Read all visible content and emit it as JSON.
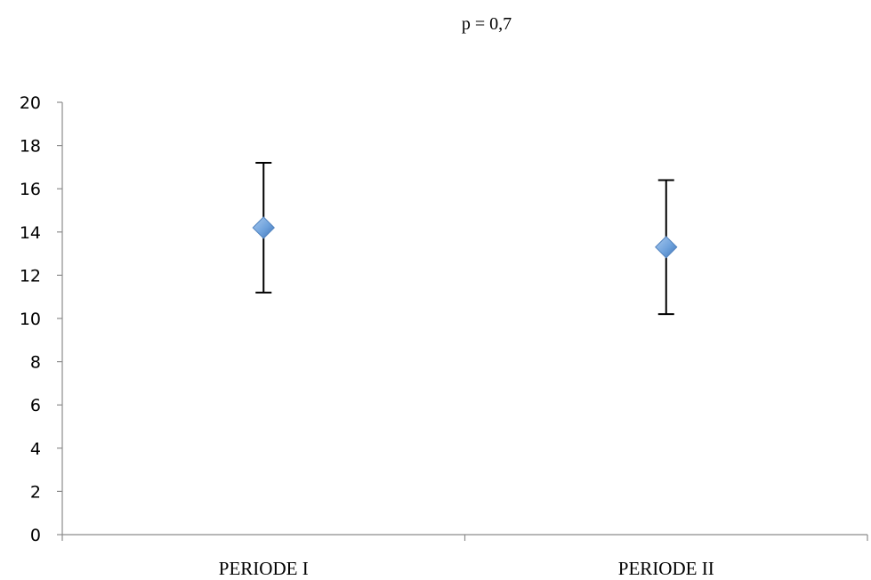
{
  "chart_data": {
    "type": "scatter",
    "title": "p = 0,7",
    "xlabel": "",
    "ylabel": "",
    "categories": [
      "PERIODE I",
      "PERIODE II"
    ],
    "ylim": [
      0,
      20
    ],
    "yticks": [
      "0",
      "2",
      "4",
      "6",
      "8",
      "10",
      "12",
      "14",
      "16",
      "18",
      "20"
    ],
    "grid": false,
    "legend": "none",
    "marker": "diamond",
    "marker_color": "#5B9BD5",
    "errorbar_color": "#000000",
    "series": [
      {
        "values": [
          14.2,
          13.3
        ],
        "error_low": [
          11.2,
          10.2
        ],
        "error_high": [
          17.2,
          16.4
        ]
      }
    ]
  }
}
